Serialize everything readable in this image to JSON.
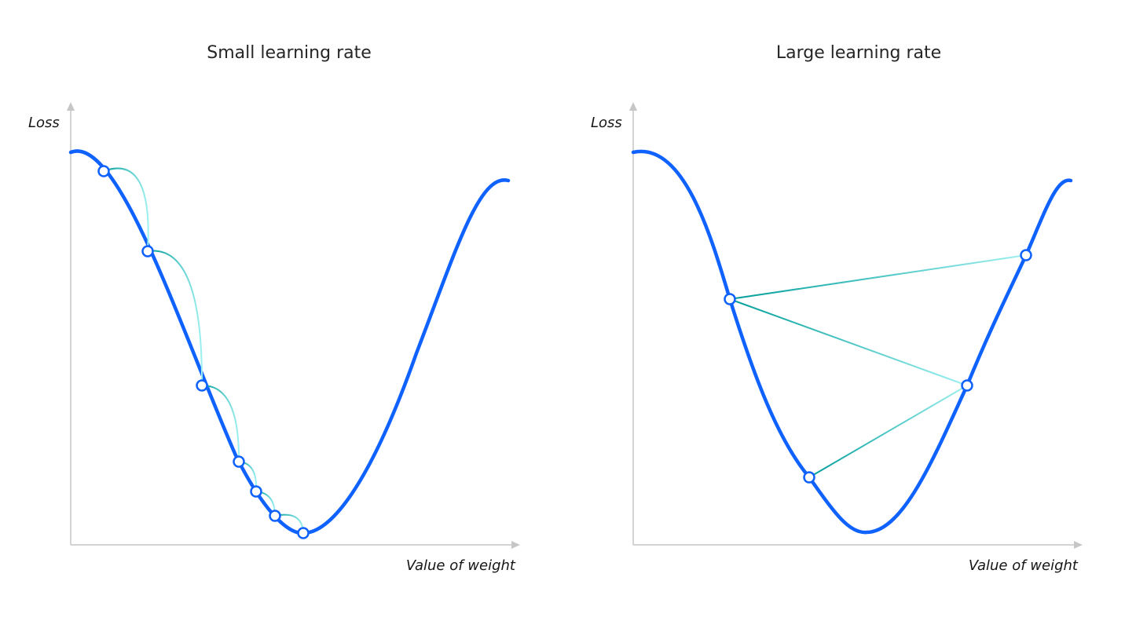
{
  "panels": [
    {
      "title": "Small learning rate",
      "y_axis_label": "Loss",
      "x_axis_label": "Value of weight",
      "step_style": "arc"
    },
    {
      "title": "Large learning rate",
      "y_axis_label": "Loss",
      "x_axis_label": "Value of weight",
      "step_style": "line"
    }
  ],
  "colors": {
    "curve": "#0f62fe",
    "step_dark": "#009d9a",
    "step_light": "#9ef0f0",
    "axis": "#c6c6c6",
    "point_fill": "#ffffff"
  }
}
